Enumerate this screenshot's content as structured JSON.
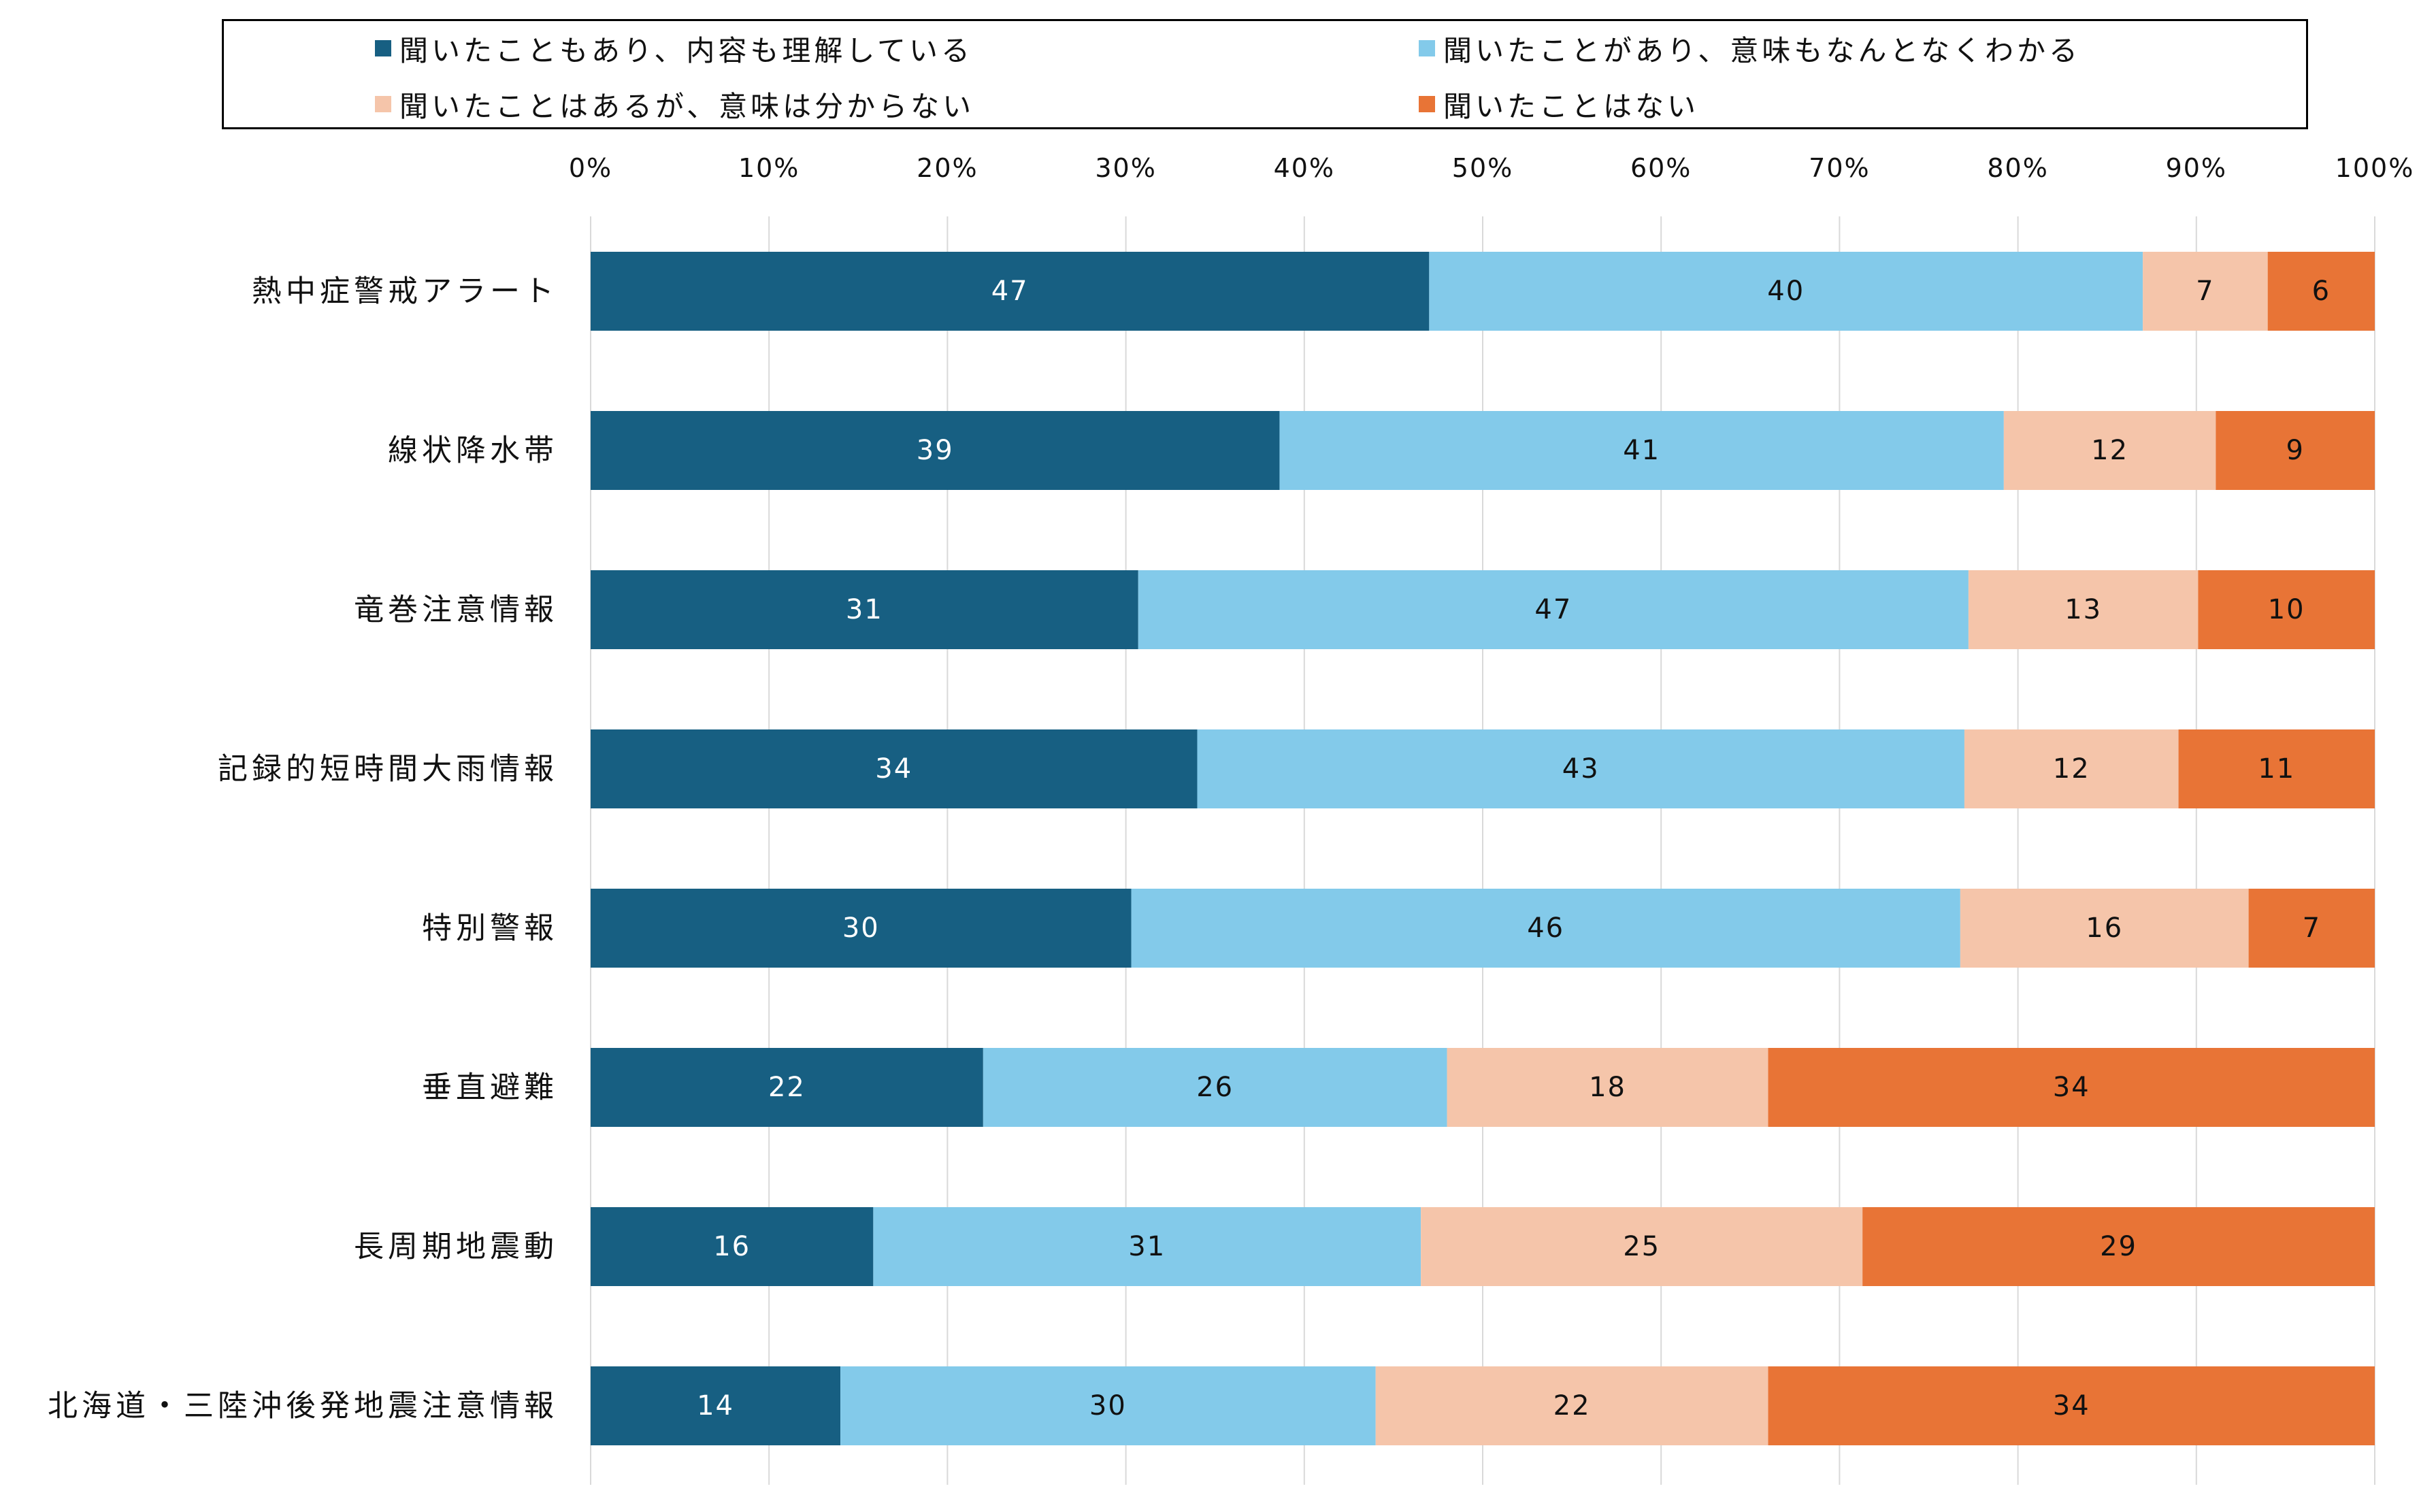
{
  "chart_data": {
    "type": "bar",
    "orientation": "horizontal",
    "stacked": true,
    "percent_scale": true,
    "xlim": [
      0,
      100
    ],
    "x_ticks": [
      "0%",
      "10%",
      "20%",
      "30%",
      "40%",
      "50%",
      "60%",
      "70%",
      "80%",
      "90%",
      "100%"
    ],
    "grid": true,
    "legend_position": "top",
    "categories": [
      "熱中症警戒アラート",
      "線状降水帯",
      "竜巻注意情報",
      "記録的短時間大雨情報",
      "特別警報",
      "垂直避難",
      "長周期地震動",
      "北海道・三陸沖後発地震注意情報"
    ],
    "series": [
      {
        "name": "聞いたこともあり、内容も理解している",
        "color": "#175f82",
        "label_color": "#ffffff",
        "values": [
          47,
          39,
          31,
          34,
          30,
          22,
          16,
          14
        ]
      },
      {
        "name": "聞いたことがあり、意味もなんとなくわかる",
        "color": "#83caea",
        "label_color": "#111111",
        "values": [
          40,
          41,
          47,
          43,
          46,
          26,
          31,
          30
        ]
      },
      {
        "name": "聞いたことはあるが、意味は分からない",
        "color": "#f5c5aa",
        "label_color": "#111111",
        "values": [
          7,
          12,
          13,
          12,
          16,
          18,
          25,
          22
        ]
      },
      {
        "name": "聞いたことはない",
        "color": "#e87436",
        "label_color": "#111111",
        "values": [
          6,
          9,
          10,
          11,
          7,
          34,
          29,
          34
        ]
      }
    ]
  }
}
